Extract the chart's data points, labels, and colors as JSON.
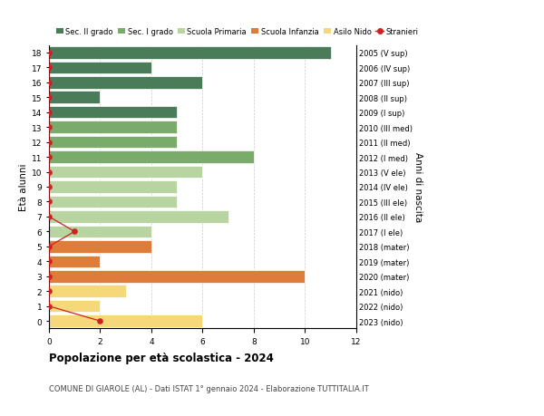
{
  "ages": [
    18,
    17,
    16,
    15,
    14,
    13,
    12,
    11,
    10,
    9,
    8,
    7,
    6,
    5,
    4,
    3,
    2,
    1,
    0
  ],
  "right_labels": [
    "2005 (V sup)",
    "2006 (IV sup)",
    "2007 (III sup)",
    "2008 (II sup)",
    "2009 (I sup)",
    "2010 (III med)",
    "2011 (II med)",
    "2012 (I med)",
    "2013 (V ele)",
    "2014 (IV ele)",
    "2015 (III ele)",
    "2016 (II ele)",
    "2017 (I ele)",
    "2018 (mater)",
    "2019 (mater)",
    "2020 (mater)",
    "2021 (nido)",
    "2022 (nido)",
    "2023 (nido)"
  ],
  "bar_values": [
    11,
    4,
    6,
    2,
    5,
    5,
    5,
    8,
    6,
    5,
    5,
    7,
    4,
    4,
    2,
    10,
    3,
    2,
    6
  ],
  "bar_colors": [
    "#4a7c59",
    "#4a7c59",
    "#4a7c59",
    "#4a7c59",
    "#4a7c59",
    "#7bab6a",
    "#7bab6a",
    "#7bab6a",
    "#b8d4a0",
    "#b8d4a0",
    "#b8d4a0",
    "#b8d4a0",
    "#b8d4a0",
    "#e07c3a",
    "#e07c3a",
    "#e07c3a",
    "#f5d87a",
    "#f5d87a",
    "#f5d87a"
  ],
  "stranieri_x": [
    0,
    0,
    0,
    0,
    0,
    0,
    0,
    0,
    0,
    0,
    0,
    0,
    1,
    0,
    0,
    0,
    0,
    0,
    2
  ],
  "legend_labels": [
    "Sec. II grado",
    "Sec. I grado",
    "Scuola Primaria",
    "Scuola Infanzia",
    "Asilo Nido",
    "Stranieri"
  ],
  "legend_colors": [
    "#4a7c59",
    "#7bab6a",
    "#b8d4a0",
    "#e07c3a",
    "#f5d87a",
    "#cc2222"
  ],
  "title": "Popolazione per età scolastica - 2024",
  "subtitle": "COMUNE DI GIAROLE (AL) - Dati ISTAT 1° gennaio 2024 - Elaborazione TUTTITALIA.IT",
  "xlabel_left": "Età alunni",
  "xlabel_right": "Anni di nascita",
  "xlim": [
    0,
    12
  ],
  "ylim": [
    -0.5,
    18.5
  ],
  "grid_color": "#cccccc"
}
